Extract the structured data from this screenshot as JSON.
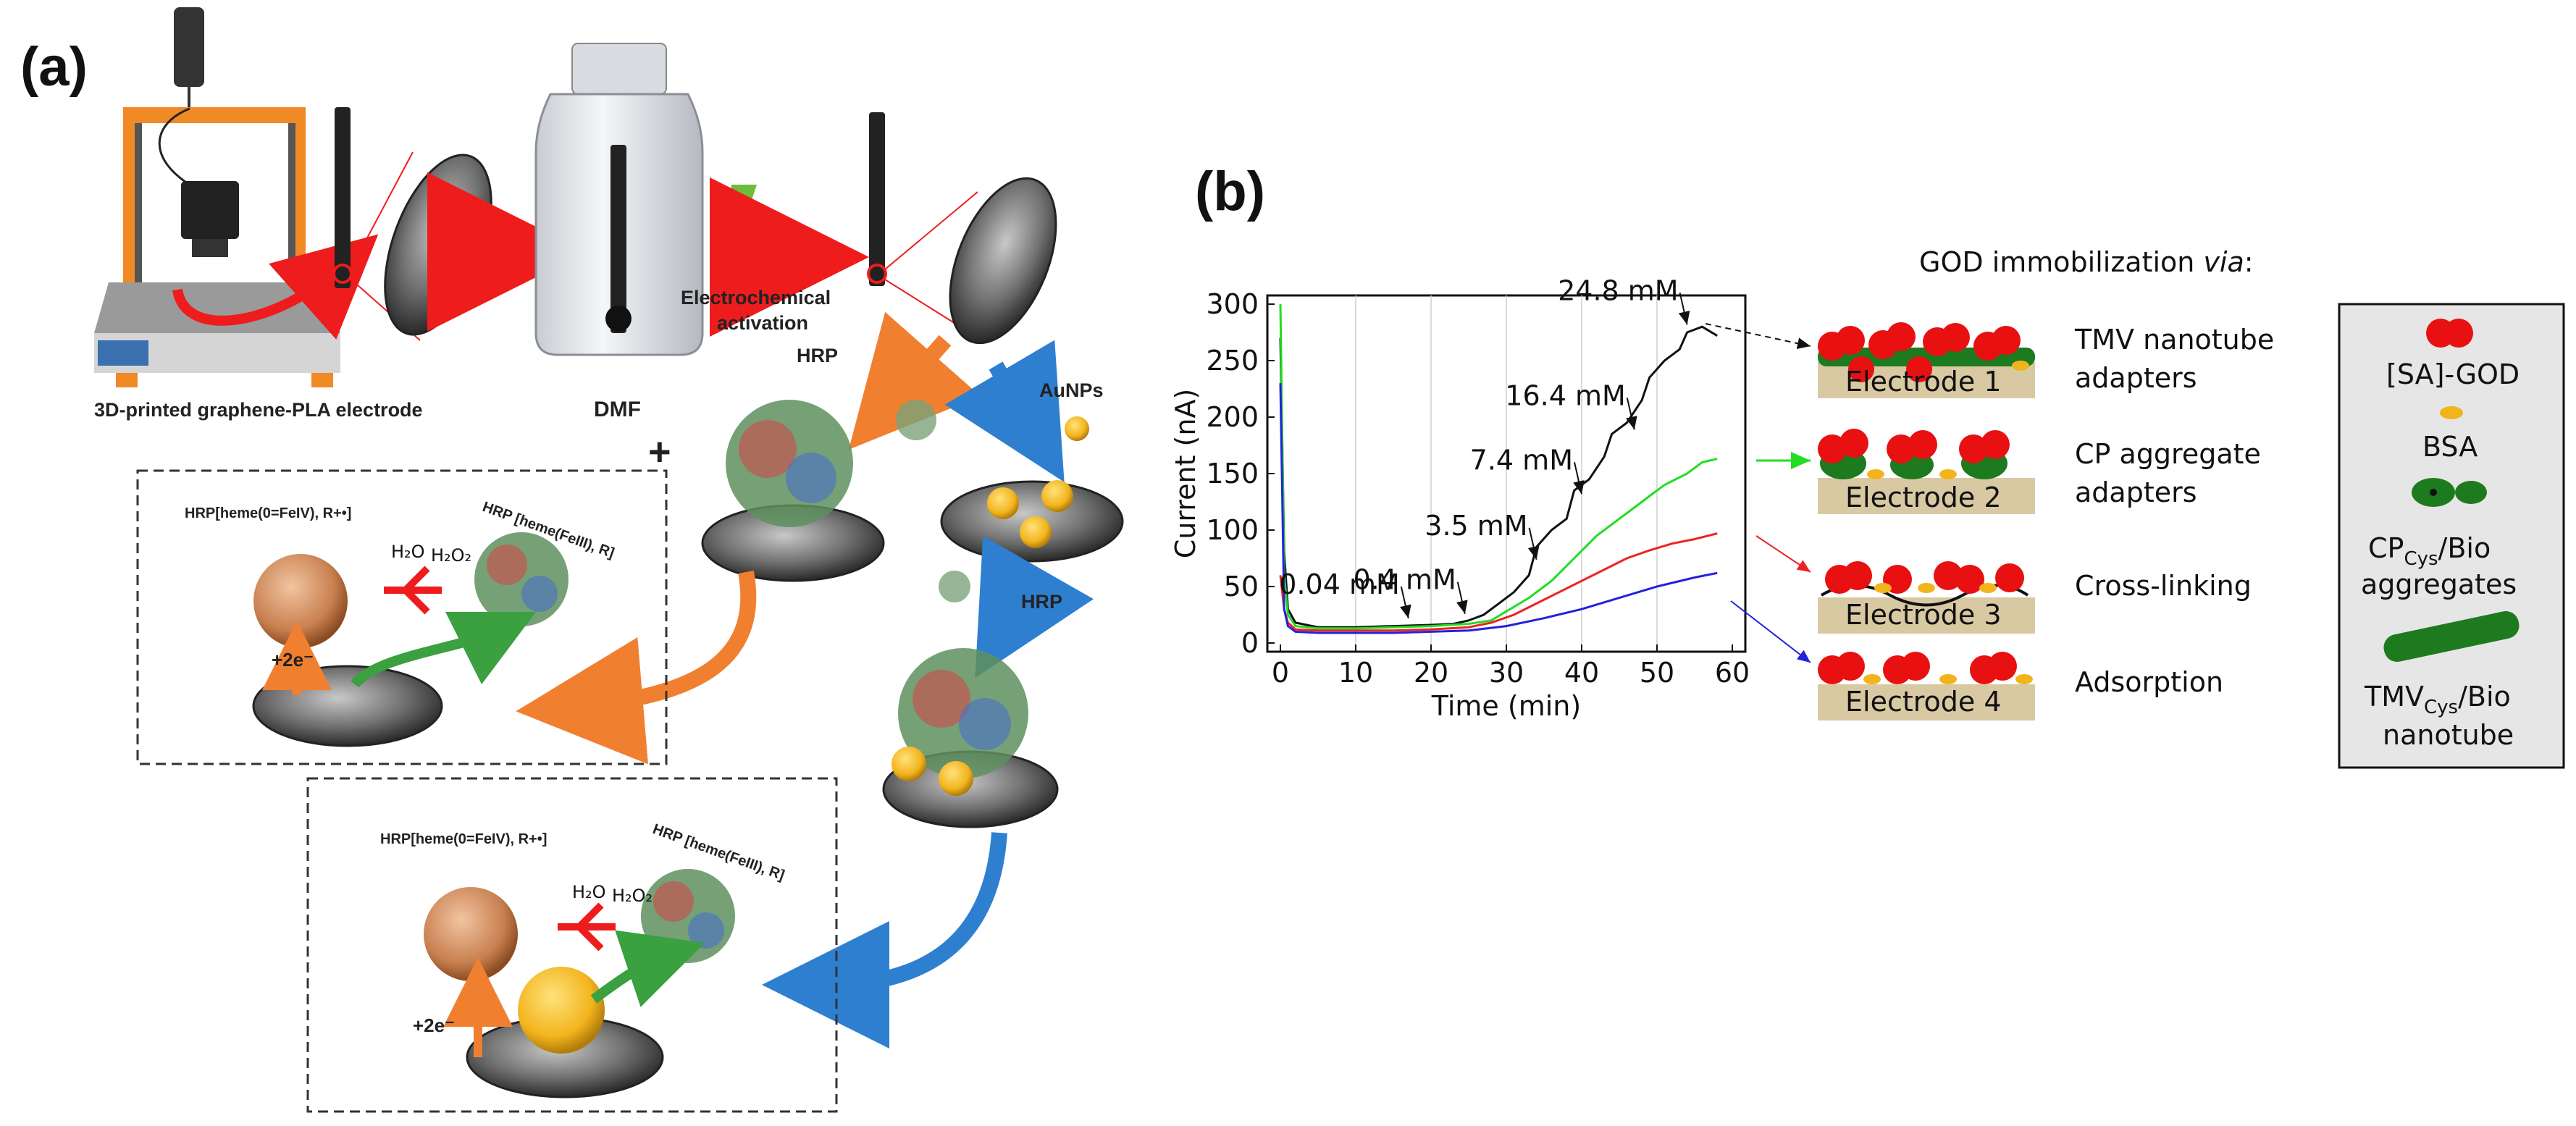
{
  "panel_a": {
    "label": "(a)",
    "printer_caption": "3D-printed graphene-PLA electrode",
    "dmf_label": "DMF",
    "activation_label_line1": "Electrochemical",
    "activation_label_line2": "activation",
    "plus_sign": "+",
    "hrp_label_left": "HRP",
    "aunp_label": "AuNPs",
    "hrp_label_right": "HRP",
    "box1": {
      "oxidized_label": "HRP[heme(0=FeIV), R+•]",
      "reduced_label": "HRP [heme(FeIII), R]",
      "h2o": "H₂O",
      "h2o2": "H₂O₂",
      "electrons": "+2e⁻"
    },
    "box2": {
      "oxidized_label": "HRP[heme(0=FeIV), R+•]",
      "reduced_label": "HRP [heme(FeIII), R]",
      "h2o": "H₂O",
      "h2o2": "H₂O₂",
      "electrons": "+2e⁻"
    }
  },
  "panel_b": {
    "label": "(b)",
    "immobilization_title_prefix": "GOD immobilization ",
    "immobilization_title_italic": "via",
    "immobilization_title_suffix": ":",
    "electrodes": [
      {
        "name": "Electrode 1",
        "method_line1": "TMV nanotube",
        "method_line2": "adapters",
        "color": "#111111"
      },
      {
        "name": "Electrode 2",
        "method_line1": "CP aggregate",
        "method_line2": "adapters",
        "color": "#22dd22"
      },
      {
        "name": "Electrode 3",
        "method_line1": "Cross-linking",
        "method_line2": "",
        "color": "#ee2222"
      },
      {
        "name": "Electrode 4",
        "method_line1": "Adsorption",
        "method_line2": "",
        "color": "#2222dd"
      }
    ],
    "legend": {
      "sa_god": "[SA]-GOD",
      "bsa": "BSA",
      "cp_main": "CP",
      "cp_sub": "Cys",
      "cp_suffix": "/Bio",
      "cp_line2": "aggregates",
      "tmv_main": "TMV",
      "tmv_sub": "Cys",
      "tmv_suffix": "/Bio",
      "tmv_line2": "nanotube"
    }
  },
  "colors": {
    "red_arrow": "#ee1c1c",
    "orange_arrow": "#f08030",
    "blue_arrow": "#2f7fd0",
    "green_arrow": "#3aa040",
    "gold": "#f2b41d",
    "god_red": "#e81010",
    "cp_green": "#1e7a1e",
    "electrode_tan": "#d9c9a3",
    "legend_bg": "#e6e6e6"
  },
  "chart_data": {
    "type": "line",
    "xlabel": "Time (min)",
    "ylabel": "Current (nA)",
    "xlim": [
      0,
      60
    ],
    "ylim": [
      0,
      300
    ],
    "xticks": [
      0,
      10,
      20,
      30,
      40,
      50,
      60
    ],
    "yticks": [
      0,
      50,
      100,
      150,
      200,
      250,
      300
    ],
    "grid": "vertical",
    "annotations": [
      {
        "text": "0.04 mM",
        "x": 17,
        "y": 18
      },
      {
        "text": "0.4 mM",
        "x": 24.5,
        "y": 22
      },
      {
        "text": "3.5 mM",
        "x": 34,
        "y": 70
      },
      {
        "text": "7.4 mM",
        "x": 40,
        "y": 128
      },
      {
        "text": "16.4 mM",
        "x": 47,
        "y": 185
      },
      {
        "text": "24.8 mM",
        "x": 54,
        "y": 278
      }
    ],
    "series": [
      {
        "name": "Electrode 1",
        "color": "#111111",
        "x": [
          0,
          0.5,
          1,
          2,
          5,
          10,
          15,
          20,
          23,
          25,
          27,
          29,
          31,
          33,
          34,
          36,
          38,
          39,
          41,
          43,
          44,
          46,
          48,
          49,
          51,
          53,
          54,
          56,
          58
        ],
        "y": [
          270,
          80,
          30,
          18,
          14,
          14,
          15,
          16,
          17,
          20,
          25,
          35,
          45,
          60,
          85,
          100,
          110,
          135,
          145,
          165,
          185,
          195,
          215,
          235,
          250,
          260,
          275,
          280,
          272
        ]
      },
      {
        "name": "Electrode 2",
        "color": "#22dd22",
        "x": [
          0,
          0.5,
          1,
          2,
          5,
          10,
          15,
          20,
          25,
          28,
          30,
          33,
          36,
          39,
          42,
          45,
          48,
          51,
          54,
          56,
          58
        ],
        "y": [
          300,
          60,
          25,
          15,
          13,
          13,
          14,
          15,
          17,
          20,
          28,
          40,
          55,
          75,
          95,
          110,
          125,
          140,
          150,
          160,
          163
        ]
      },
      {
        "name": "Electrode 3",
        "color": "#ee2222",
        "x": [
          0,
          0.5,
          1,
          2,
          5,
          10,
          15,
          20,
          25,
          28,
          31,
          34,
          37,
          40,
          43,
          46,
          49,
          52,
          55,
          58
        ],
        "y": [
          60,
          30,
          18,
          12,
          11,
          11,
          11,
          12,
          14,
          18,
          25,
          35,
          45,
          55,
          65,
          75,
          82,
          88,
          92,
          97
        ]
      },
      {
        "name": "Electrode 4",
        "color": "#2222dd",
        "x": [
          0,
          0.5,
          1,
          2,
          5,
          10,
          15,
          20,
          25,
          30,
          35,
          40,
          45,
          50,
          55,
          58
        ],
        "y": [
          230,
          30,
          15,
          10,
          9,
          9,
          9,
          10,
          11,
          15,
          22,
          30,
          40,
          50,
          58,
          62
        ]
      }
    ]
  }
}
